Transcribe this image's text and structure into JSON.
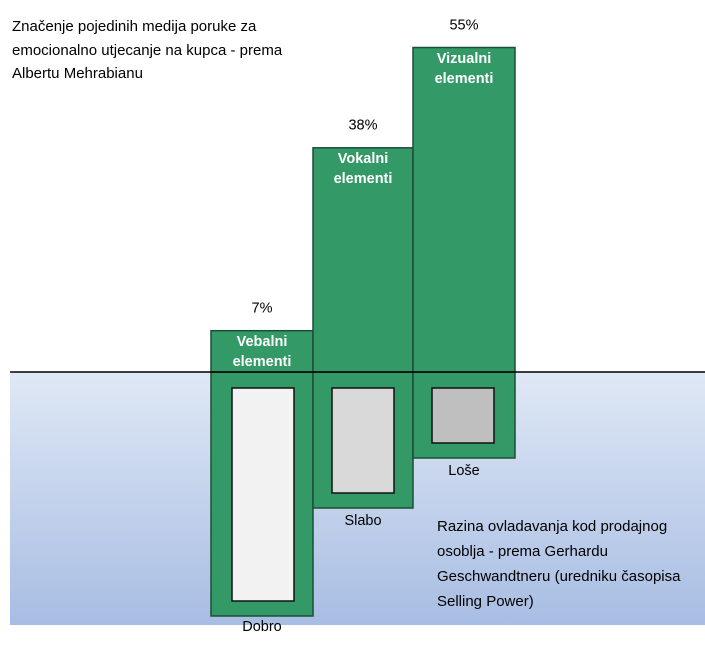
{
  "chart_data": {
    "type": "bar",
    "title": "Značenje pojedinih medija poruke za emocionalno utjecanje na kupca - prema Albertu Mehrabianu",
    "categories": [
      "Vebalni elementi",
      "Vokalni elementi",
      "Vizualni elementi"
    ],
    "values": [
      7,
      38,
      55
    ],
    "value_labels": [
      "7%",
      "38%",
      "55%"
    ],
    "color": "#339966",
    "lower_labels": [
      "Dobro",
      "Slabo",
      "Loše"
    ],
    "annotation": "Razina ovladavanja kod prodajnog osoblja - prema Gerhardu Geschwandtneru (uredniku časopisa Selling Power)"
  }
}
